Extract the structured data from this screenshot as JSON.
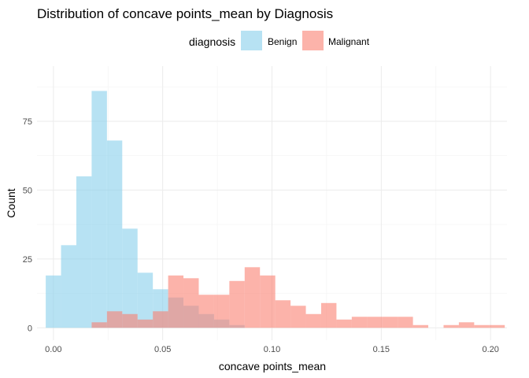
{
  "chart_data": {
    "type": "bar",
    "subtype": "overlaid-histogram",
    "title": "Distribution of concave points_mean by Diagnosis",
    "xlabel": "concave points_mean",
    "ylabel": "Count",
    "xlim": [
      -0.0075,
      0.2075
    ],
    "ylim": [
      -4.5,
      95
    ],
    "x_ticks": [
      0.0,
      0.05,
      0.1,
      0.15,
      0.2
    ],
    "x_tick_labels": [
      "0.00",
      "0.05",
      "0.10",
      "0.15",
      "0.20"
    ],
    "y_ticks": [
      0,
      25,
      50,
      75
    ],
    "y_tick_labels": [
      "0",
      "25",
      "50",
      "75"
    ],
    "grid": true,
    "legend": {
      "title": "diagnosis",
      "position": "top"
    },
    "bin_width": 0.007,
    "series": [
      {
        "name": "Benign",
        "color": "#87ceeb",
        "opacity": 0.6,
        "bins": [
          {
            "x0": -0.0035,
            "x1": 0.0035,
            "count": 19
          },
          {
            "x0": 0.0035,
            "x1": 0.0105,
            "count": 30
          },
          {
            "x0": 0.0105,
            "x1": 0.0175,
            "count": 55
          },
          {
            "x0": 0.0175,
            "x1": 0.0245,
            "count": 86
          },
          {
            "x0": 0.0245,
            "x1": 0.0315,
            "count": 68
          },
          {
            "x0": 0.0315,
            "x1": 0.0385,
            "count": 36
          },
          {
            "x0": 0.0385,
            "x1": 0.0455,
            "count": 20
          },
          {
            "x0": 0.0455,
            "x1": 0.0525,
            "count": 14
          },
          {
            "x0": 0.0525,
            "x1": 0.0595,
            "count": 11
          },
          {
            "x0": 0.0595,
            "x1": 0.0665,
            "count": 8
          },
          {
            "x0": 0.0665,
            "x1": 0.0735,
            "count": 5
          },
          {
            "x0": 0.0735,
            "x1": 0.0805,
            "count": 3
          },
          {
            "x0": 0.0805,
            "x1": 0.0875,
            "count": 1
          }
        ]
      },
      {
        "name": "Malignant",
        "color": "#fa8072",
        "opacity": 0.6,
        "bins": [
          {
            "x0": 0.0175,
            "x1": 0.0245,
            "count": 2
          },
          {
            "x0": 0.0245,
            "x1": 0.0315,
            "count": 6
          },
          {
            "x0": 0.0315,
            "x1": 0.0385,
            "count": 5
          },
          {
            "x0": 0.0385,
            "x1": 0.0455,
            "count": 3
          },
          {
            "x0": 0.0455,
            "x1": 0.0525,
            "count": 6
          },
          {
            "x0": 0.0525,
            "x1": 0.0595,
            "count": 19
          },
          {
            "x0": 0.0595,
            "x1": 0.0665,
            "count": 18
          },
          {
            "x0": 0.0665,
            "x1": 0.0735,
            "count": 12
          },
          {
            "x0": 0.0735,
            "x1": 0.0805,
            "count": 12
          },
          {
            "x0": 0.0805,
            "x1": 0.0875,
            "count": 17
          },
          {
            "x0": 0.0875,
            "x1": 0.0945,
            "count": 22
          },
          {
            "x0": 0.0945,
            "x1": 0.1015,
            "count": 19
          },
          {
            "x0": 0.1015,
            "x1": 0.1085,
            "count": 10
          },
          {
            "x0": 0.1085,
            "x1": 0.1155,
            "count": 8
          },
          {
            "x0": 0.1155,
            "x1": 0.1225,
            "count": 5
          },
          {
            "x0": 0.1225,
            "x1": 0.1295,
            "count": 9
          },
          {
            "x0": 0.1295,
            "x1": 0.1365,
            "count": 3
          },
          {
            "x0": 0.1365,
            "x1": 0.1435,
            "count": 4
          },
          {
            "x0": 0.1435,
            "x1": 0.1505,
            "count": 4
          },
          {
            "x0": 0.1505,
            "x1": 0.1575,
            "count": 4
          },
          {
            "x0": 0.1575,
            "x1": 0.1645,
            "count": 4
          },
          {
            "x0": 0.1645,
            "x1": 0.1715,
            "count": 1
          },
          {
            "x0": 0.1785,
            "x1": 0.1855,
            "count": 1
          },
          {
            "x0": 0.1855,
            "x1": 0.1925,
            "count": 2
          },
          {
            "x0": 0.1925,
            "x1": 0.1995,
            "count": 1
          },
          {
            "x0": 0.1995,
            "x1": 0.2065,
            "count": 1
          }
        ]
      }
    ]
  }
}
